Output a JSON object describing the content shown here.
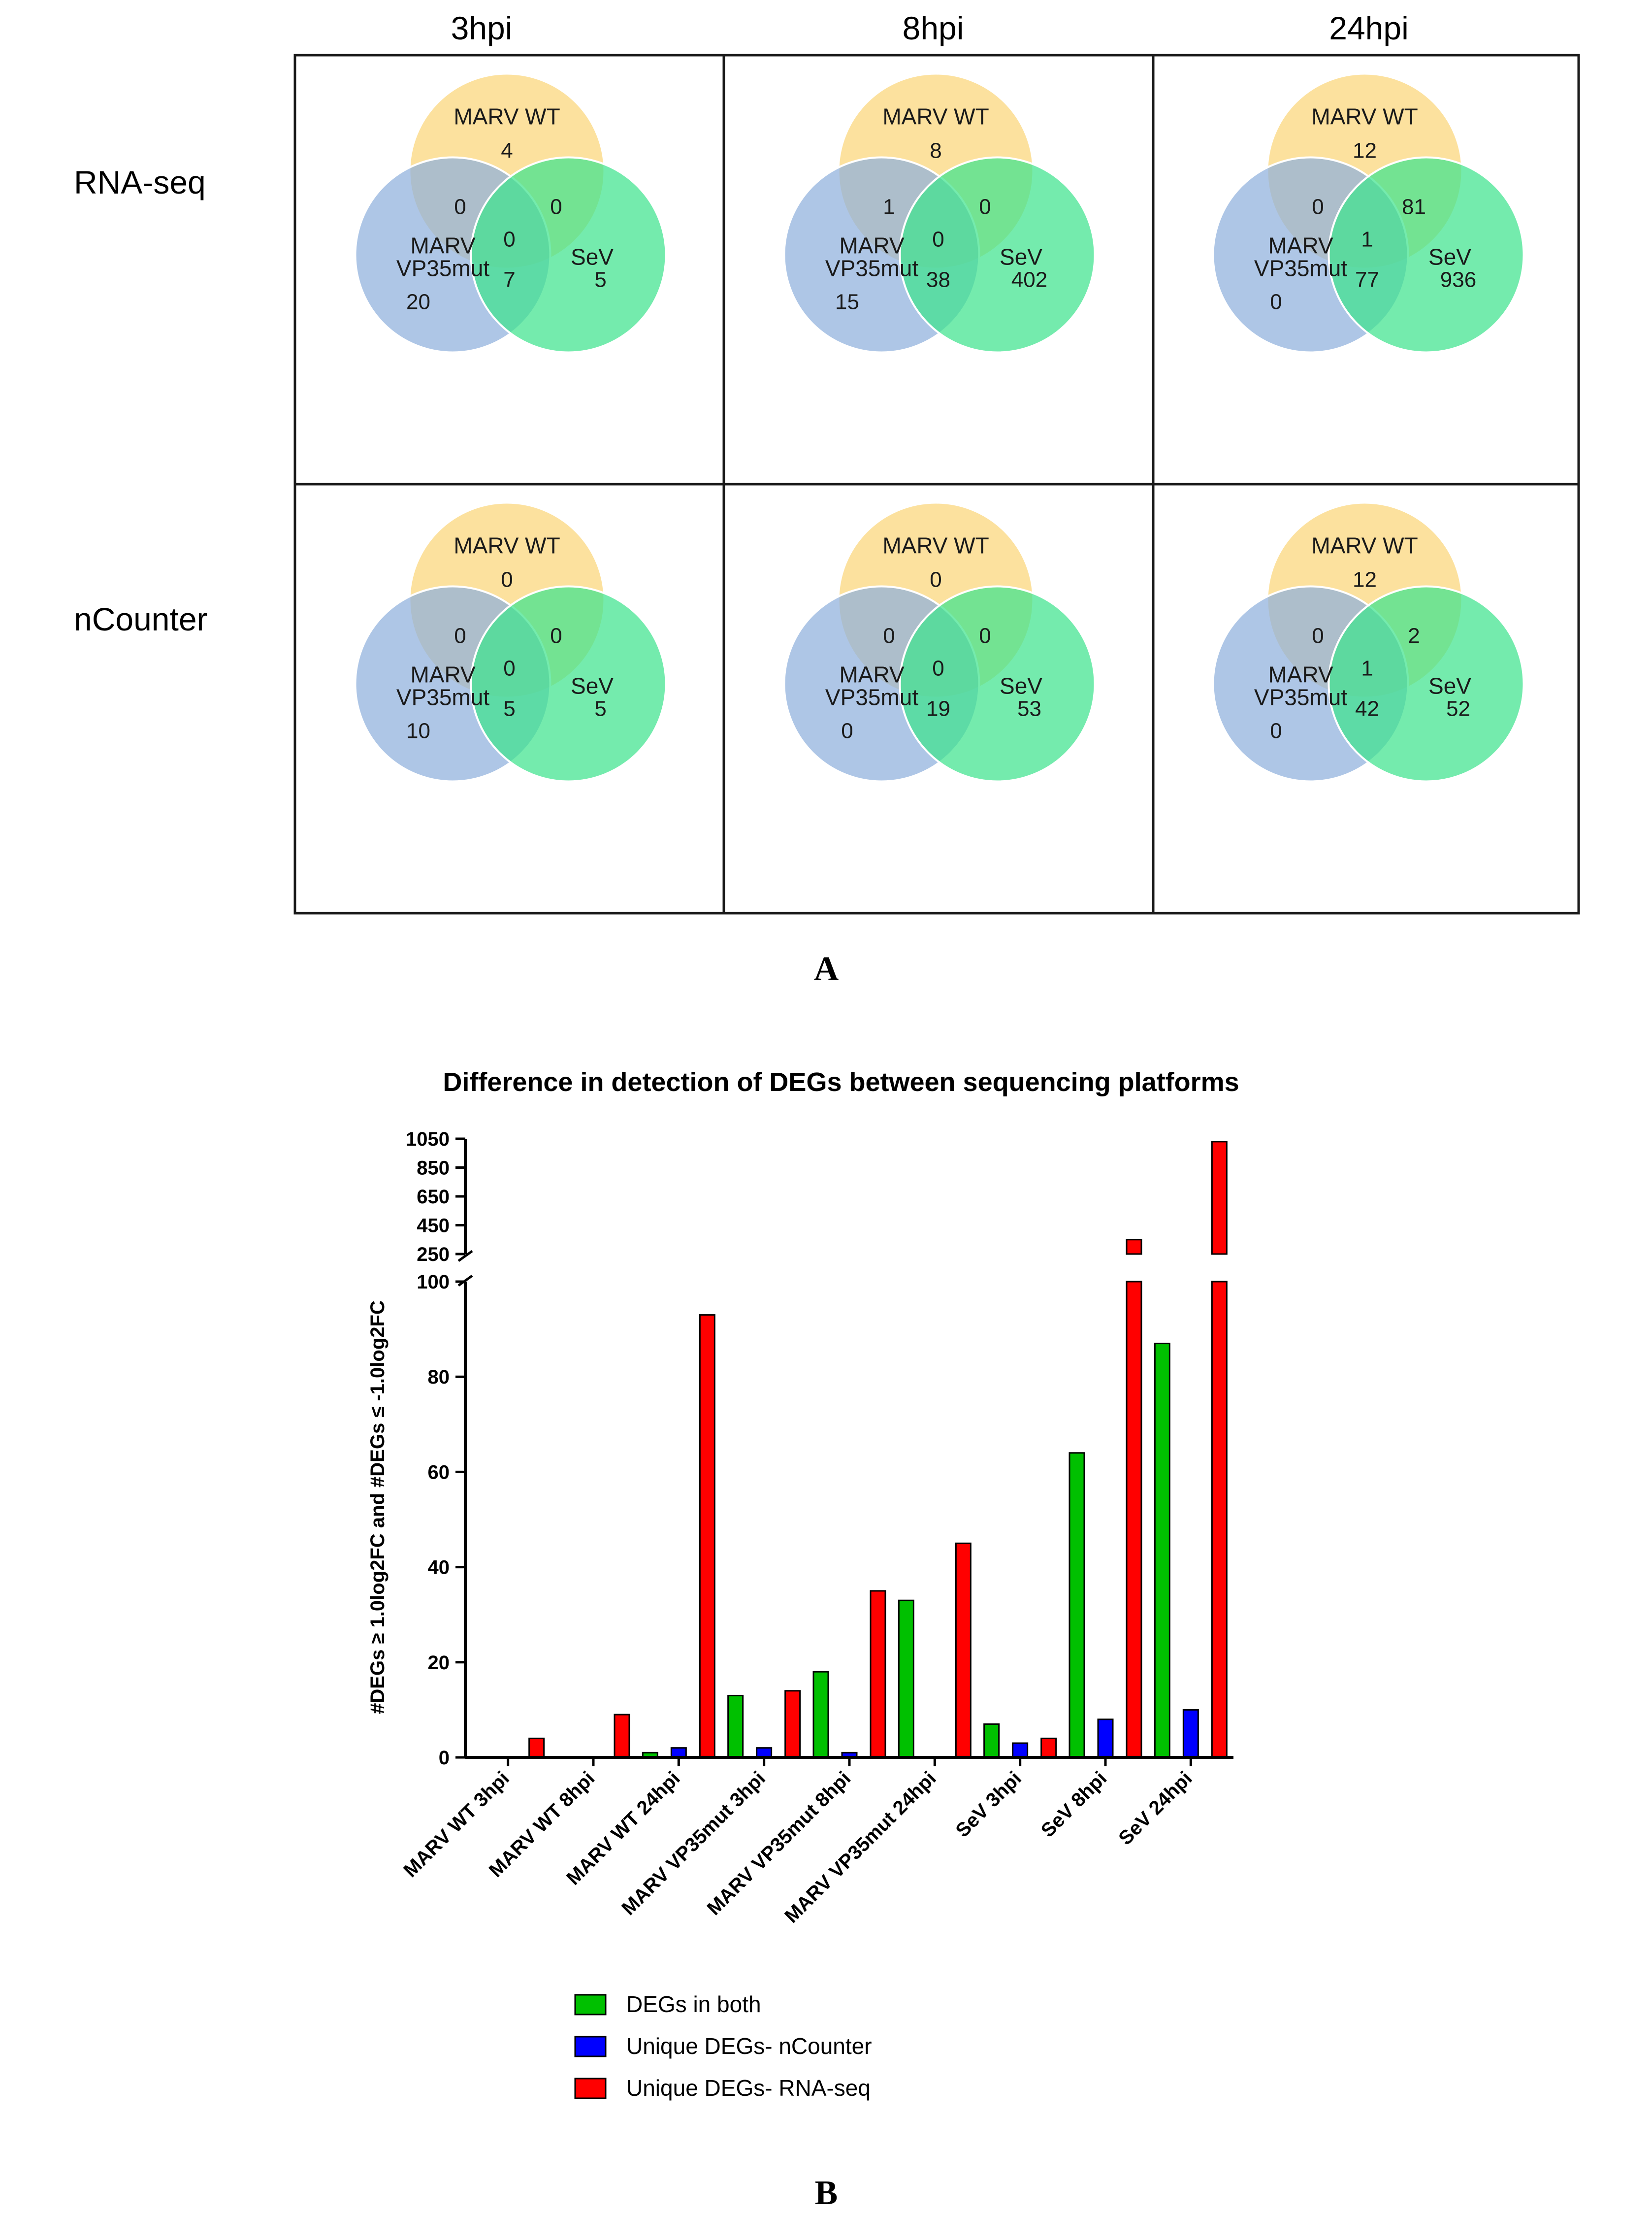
{
  "panel_a": {
    "label": "A",
    "columns": [
      "3hpi",
      "8hpi",
      "24hpi"
    ],
    "rows": [
      "RNA-seq",
      "nCounter"
    ],
    "set_labels": {
      "marv_wt": "MARV WT",
      "vp35_line1": "MARV",
      "vp35_line2": "VP35mut",
      "sev": "SeV"
    },
    "colors": {
      "marv_wt": "#fbd679",
      "vp35": "#8fb0dc",
      "sev": "#3ee38d"
    },
    "venns": [
      {
        "row": "RNA-seq",
        "time": "3hpi",
        "wt_only": "4",
        "wt_vp35": "0",
        "wt_sev": "0",
        "all": "0",
        "vp35_sev": "7",
        "vp35_only": "20",
        "sev_only": "5"
      },
      {
        "row": "RNA-seq",
        "time": "8hpi",
        "wt_only": "8",
        "wt_vp35": "1",
        "wt_sev": "0",
        "all": "0",
        "vp35_sev": "38",
        "vp35_only": "15",
        "sev_only": "402"
      },
      {
        "row": "RNA-seq",
        "time": "24hpi",
        "wt_only": "12",
        "wt_vp35": "0",
        "wt_sev": "81",
        "all": "1",
        "vp35_sev": "77",
        "vp35_only": "0",
        "sev_only": "936"
      },
      {
        "row": "nCounter",
        "time": "3hpi",
        "wt_only": "0",
        "wt_vp35": "0",
        "wt_sev": "0",
        "all": "0",
        "vp35_sev": "5",
        "vp35_only": "10",
        "sev_only": "5"
      },
      {
        "row": "nCounter",
        "time": "8hpi",
        "wt_only": "0",
        "wt_vp35": "0",
        "wt_sev": "0",
        "all": "0",
        "vp35_sev": "19",
        "vp35_only": "0",
        "sev_only": "53"
      },
      {
        "row": "nCounter",
        "time": "24hpi",
        "wt_only": "12",
        "wt_vp35": "0",
        "wt_sev": "2",
        "all": "1",
        "vp35_sev": "42",
        "vp35_only": "0",
        "sev_only": "52"
      }
    ]
  },
  "chart_data": {
    "type": "bar",
    "title": "Difference in detection of DEGs between sequencing platforms",
    "ylabel": "#DEGs ≥ 1.0log2FC and #DEGs ≤ -1.0log2FC",
    "xlabel": "",
    "categories": [
      "MARV WT 3hpi",
      "MARV WT 8hpi",
      "MARV WT 24hpi",
      "MARV VP35mut 3hpi",
      "MARV VP35mut 8hpi",
      "MARV VP35mut 24hpi",
      "SeV 3hpi",
      "SeV 8hpi",
      "SeV 24hpi"
    ],
    "series": [
      {
        "name": "DEGs in both",
        "color": "#00c000",
        "values": [
          0,
          0,
          1,
          13,
          18,
          33,
          7,
          64,
          87
        ]
      },
      {
        "name": "Unique DEGs- nCounter",
        "color": "#0000ff",
        "values": [
          0,
          0,
          2,
          2,
          1,
          0,
          3,
          8,
          10
        ]
      },
      {
        "name": "Unique DEGs- RNA-seq",
        "color": "#ff0000",
        "values": [
          4,
          9,
          93,
          14,
          35,
          45,
          4,
          350,
          1030
        ]
      }
    ],
    "y_axis_lower": {
      "range": [
        0,
        100
      ],
      "ticks": [
        0,
        20,
        40,
        60,
        80,
        100
      ]
    },
    "y_axis_upper": {
      "range": [
        250,
        1050
      ],
      "ticks": [
        250,
        450,
        650,
        850,
        1050
      ]
    },
    "legend_position": "bottom",
    "panel_label": "B"
  }
}
